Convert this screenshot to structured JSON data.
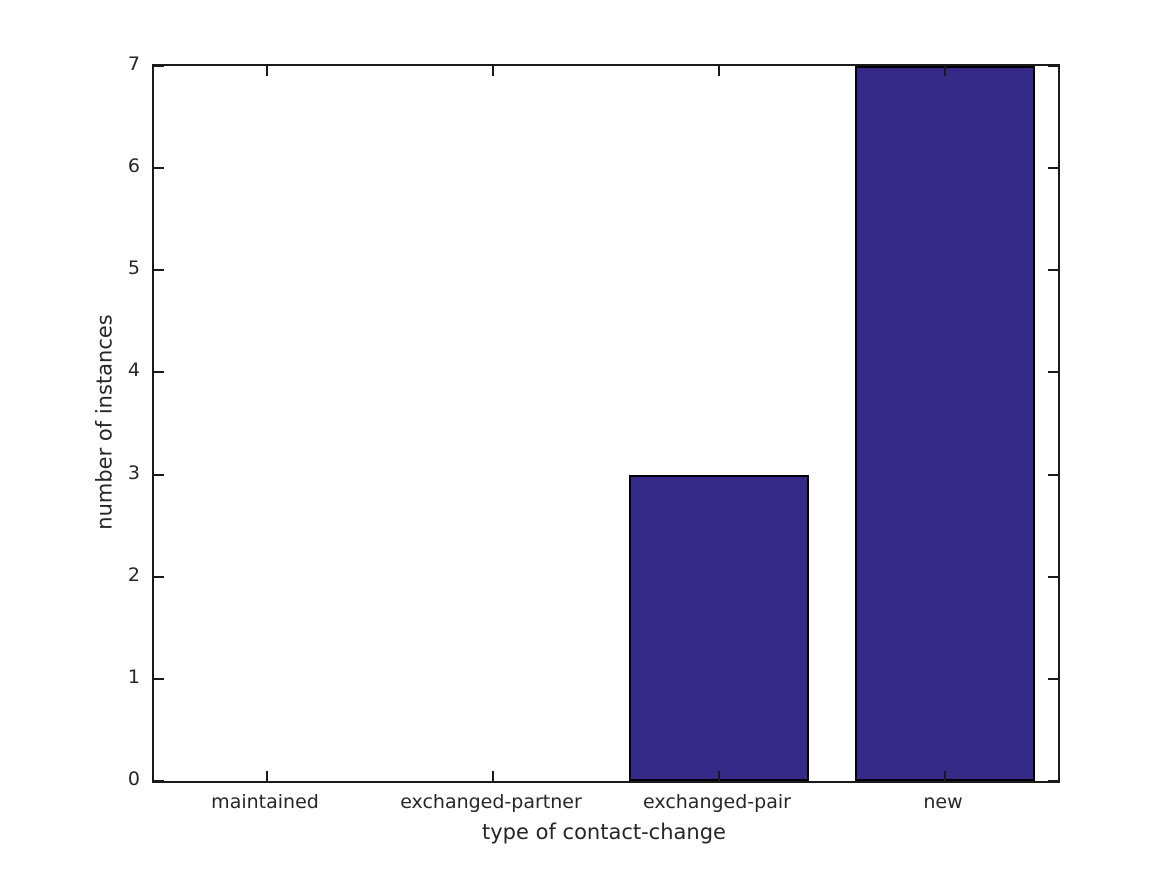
{
  "chart_data": {
    "type": "bar",
    "title": "",
    "categories": [
      "maintained",
      "exchanged-partner",
      "exchanged-pair",
      "new"
    ],
    "values": [
      0,
      0,
      3,
      7
    ],
    "xlabel": "type of contact-change",
    "ylabel": "number of instances",
    "ylim": [
      0,
      7
    ],
    "yticks": [
      0,
      1,
      2,
      3,
      4,
      5,
      6,
      7
    ],
    "bar_width_ratio": 0.8,
    "grid": false,
    "legend": "none",
    "box_frame": true,
    "tick_direction": "in",
    "colors": {
      "bar_fill": "#352a87",
      "bar_edge": "#000000",
      "axis": "#1a1a1a",
      "text": "#262626",
      "background": "#ffffff"
    }
  }
}
